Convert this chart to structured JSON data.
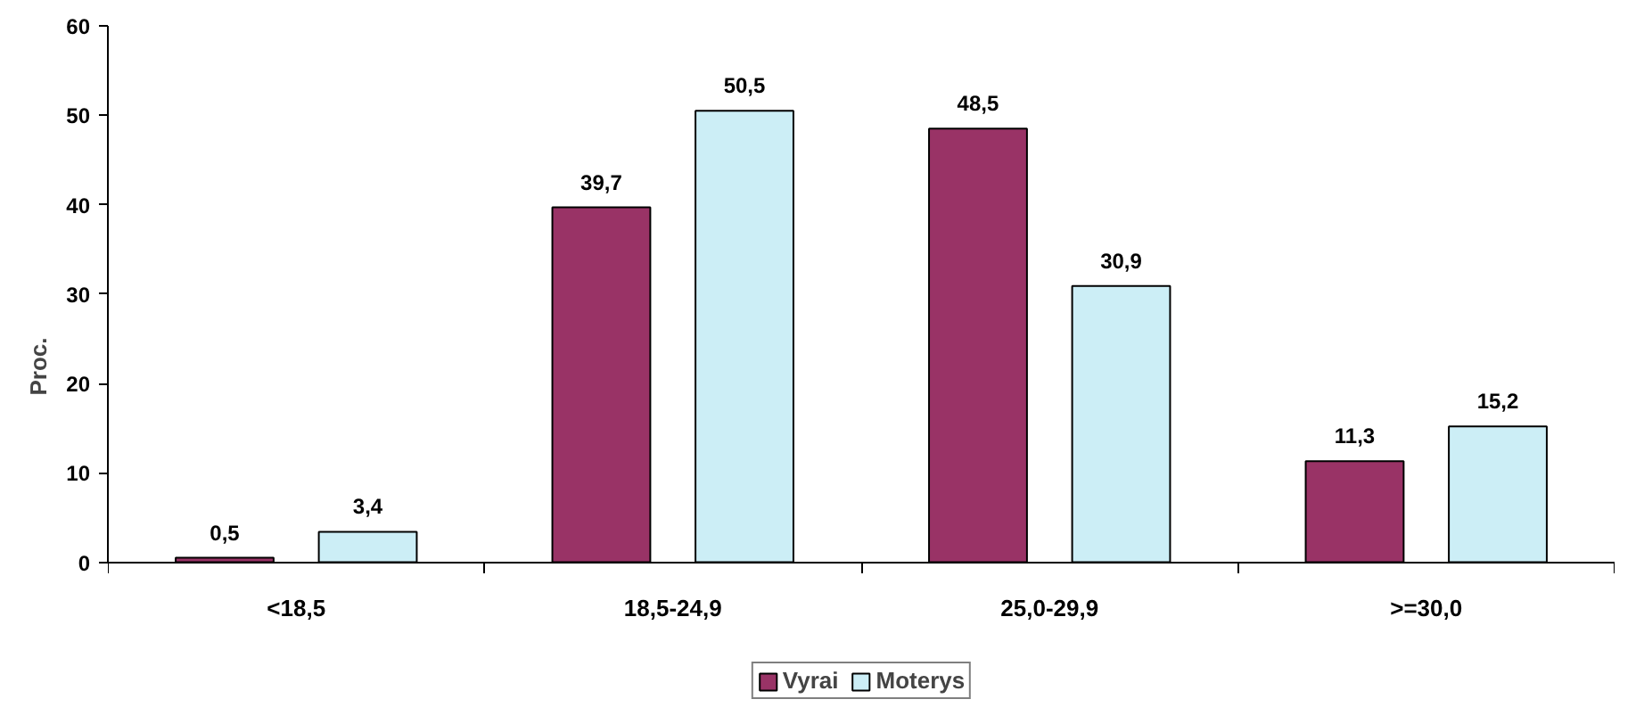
{
  "chart_data": {
    "type": "bar",
    "ylabel": "Proc.",
    "categories": [
      "<18,5",
      "18,5-24,9",
      "25,0-29,9",
      ">=30,0"
    ],
    "series": [
      {
        "name": "Vyrai",
        "color": "#993366",
        "values": [
          0.5,
          39.7,
          48.5,
          11.3
        ],
        "value_labels": [
          "0,5",
          "39,7",
          "48,5",
          "11,3"
        ]
      },
      {
        "name": "Moterys",
        "color": "#cceef6",
        "values": [
          3.4,
          50.5,
          30.9,
          15.2
        ],
        "value_labels": [
          "3,4",
          "50,5",
          "30,9",
          "15,2"
        ]
      }
    ],
    "ylim": [
      0,
      60
    ],
    "yticks": [
      0,
      10,
      20,
      30,
      40,
      50,
      60
    ],
    "grid": false,
    "legend": "bottom"
  }
}
